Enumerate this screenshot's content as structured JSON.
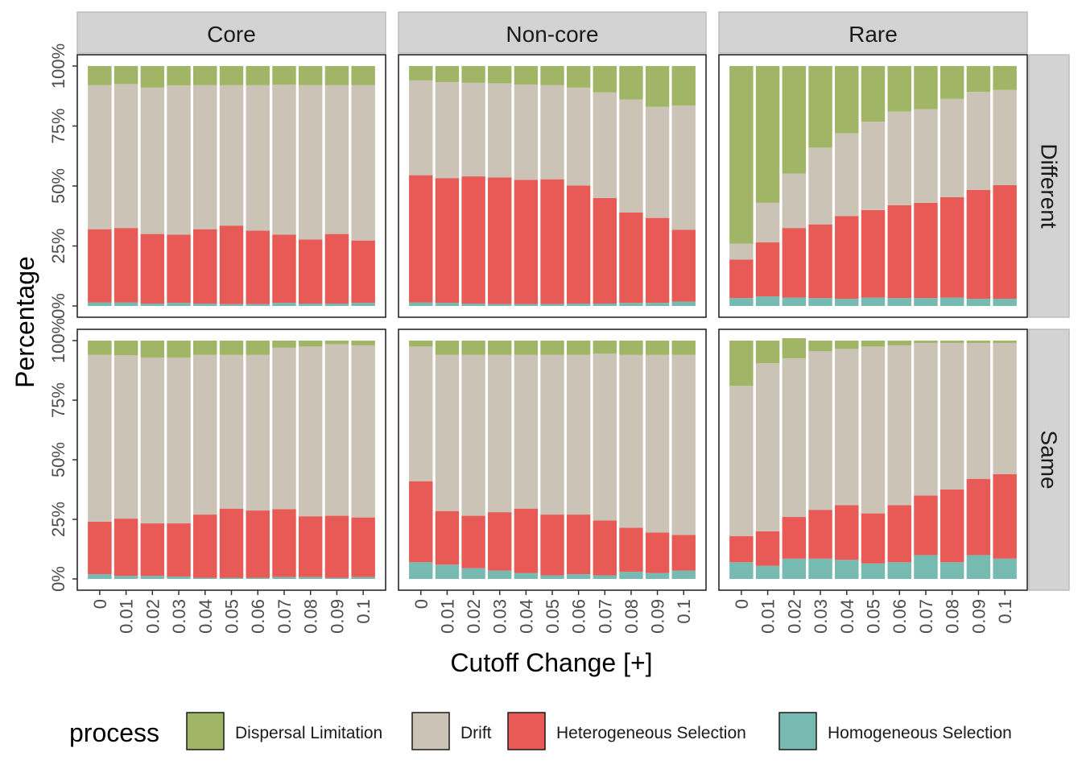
{
  "chart_data": {
    "type": "bar",
    "stacked": true,
    "ylabel": "Percentage",
    "xlabel": "Cutoff Change [+]",
    "ylim": [
      0,
      1
    ],
    "yticks": [
      "0%",
      "25%",
      "50%",
      "75%",
      "100%"
    ],
    "categories": [
      "0",
      "0.01",
      "0.02",
      "0.03",
      "0.04",
      "0.05",
      "0.06",
      "0.07",
      "0.08",
      "0.09",
      "0.1"
    ],
    "column_facets": [
      "Core",
      "Non-core",
      "Rare"
    ],
    "row_facets": [
      "Different",
      "Same"
    ],
    "legend": {
      "title": "process",
      "position": "bottom",
      "entries": [
        "Dispersal Limitation",
        "Drift",
        "Heterogeneous Selection",
        "Homogeneous Selection"
      ]
    },
    "colors": {
      "Dispersal Limitation": "#a0b566",
      "Drift": "#ccc3b7",
      "Heterogeneous Selection": "#e85a55",
      "Homogeneous Selection": "#76bab1"
    },
    "panels": [
      {
        "col": "Core",
        "row": "Different",
        "series": [
          {
            "name": "Homogeneous Selection",
            "values": [
              0.015,
              0.015,
              0.01,
              0.013,
              0.01,
              0.008,
              0.008,
              0.013,
              0.01,
              0.01,
              0.013
            ]
          },
          {
            "name": "Heterogeneous Selection",
            "values": [
              0.305,
              0.31,
              0.29,
              0.284,
              0.31,
              0.327,
              0.306,
              0.284,
              0.267,
              0.29,
              0.26
            ]
          },
          {
            "name": "Drift",
            "values": [
              0.6,
              0.6,
              0.61,
              0.622,
              0.6,
              0.585,
              0.606,
              0.625,
              0.643,
              0.62,
              0.647
            ]
          },
          {
            "name": "Dispersal Limitation",
            "values": [
              0.08,
              0.075,
              0.09,
              0.081,
              0.08,
              0.08,
              0.08,
              0.078,
              0.08,
              0.08,
              0.08
            ]
          }
        ]
      },
      {
        "col": "Non-core",
        "row": "Different",
        "series": [
          {
            "name": "Homogeneous Selection",
            "values": [
              0.015,
              0.013,
              0.01,
              0.008,
              0.008,
              0.008,
              0.01,
              0.01,
              0.013,
              0.013,
              0.018
            ]
          },
          {
            "name": "Heterogeneous Selection",
            "values": [
              0.53,
              0.52,
              0.53,
              0.528,
              0.518,
              0.52,
              0.492,
              0.44,
              0.377,
              0.354,
              0.3
            ]
          },
          {
            "name": "Drift",
            "values": [
              0.395,
              0.4,
              0.39,
              0.392,
              0.397,
              0.392,
              0.408,
              0.44,
              0.47,
              0.463,
              0.517
            ]
          },
          {
            "name": "Dispersal Limitation",
            "values": [
              0.06,
              0.067,
              0.07,
              0.072,
              0.077,
              0.08,
              0.09,
              0.11,
              0.14,
              0.17,
              0.165
            ]
          }
        ]
      },
      {
        "col": "Rare",
        "row": "Different",
        "series": [
          {
            "name": "Homogeneous Selection",
            "values": [
              0.033,
              0.04,
              0.035,
              0.033,
              0.03,
              0.035,
              0.033,
              0.033,
              0.035,
              0.03,
              0.03
            ]
          },
          {
            "name": "Heterogeneous Selection",
            "values": [
              0.16,
              0.225,
              0.29,
              0.307,
              0.345,
              0.365,
              0.387,
              0.397,
              0.418,
              0.454,
              0.474
            ]
          },
          {
            "name": "Drift",
            "values": [
              0.067,
              0.165,
              0.227,
              0.32,
              0.345,
              0.368,
              0.39,
              0.39,
              0.41,
              0.408,
              0.396
            ]
          },
          {
            "name": "Dispersal Limitation",
            "values": [
              0.74,
              0.57,
              0.448,
              0.34,
              0.28,
              0.232,
              0.19,
              0.18,
              0.137,
              0.108,
              0.1
            ]
          }
        ]
      },
      {
        "col": "Core",
        "row": "Same",
        "series": [
          {
            "name": "Homogeneous Selection",
            "values": [
              0.02,
              0.013,
              0.013,
              0.01,
              0.005,
              0.005,
              0.005,
              0.008,
              0.008,
              0.005,
              0.008
            ]
          },
          {
            "name": "Heterogeneous Selection",
            "values": [
              0.22,
              0.24,
              0.22,
              0.223,
              0.265,
              0.29,
              0.282,
              0.285,
              0.255,
              0.26,
              0.25
            ]
          },
          {
            "name": "Drift",
            "values": [
              0.7,
              0.685,
              0.695,
              0.695,
              0.67,
              0.645,
              0.653,
              0.677,
              0.712,
              0.72,
              0.722
            ]
          },
          {
            "name": "Dispersal Limitation",
            "values": [
              0.06,
              0.062,
              0.072,
              0.072,
              0.06,
              0.06,
              0.06,
              0.03,
              0.025,
              0.015,
              0.02
            ]
          }
        ]
      },
      {
        "col": "Non-core",
        "row": "Same",
        "series": [
          {
            "name": "Homogeneous Selection",
            "values": [
              0.07,
              0.06,
              0.045,
              0.035,
              0.025,
              0.015,
              0.02,
              0.015,
              0.03,
              0.025,
              0.035
            ]
          },
          {
            "name": "Heterogeneous Selection",
            "values": [
              0.34,
              0.225,
              0.22,
              0.245,
              0.27,
              0.255,
              0.25,
              0.23,
              0.185,
              0.17,
              0.15
            ]
          },
          {
            "name": "Drift",
            "values": [
              0.565,
              0.655,
              0.675,
              0.66,
              0.645,
              0.67,
              0.67,
              0.7,
              0.725,
              0.745,
              0.755
            ]
          },
          {
            "name": "Dispersal Limitation",
            "values": [
              0.025,
              0.06,
              0.06,
              0.06,
              0.06,
              0.06,
              0.06,
              0.055,
              0.06,
              0.06,
              0.06
            ]
          }
        ]
      },
      {
        "col": "Rare",
        "row": "Same",
        "series": [
          {
            "name": "Homogeneous Selection",
            "values": [
              0.07,
              0.055,
              0.085,
              0.085,
              0.08,
              0.065,
              0.07,
              0.1,
              0.07,
              0.1,
              0.085
            ]
          },
          {
            "name": "Heterogeneous Selection",
            "values": [
              0.11,
              0.145,
              0.175,
              0.205,
              0.23,
              0.21,
              0.24,
              0.25,
              0.305,
              0.32,
              0.355
            ]
          },
          {
            "name": "Drift",
            "values": [
              0.63,
              0.705,
              0.665,
              0.665,
              0.655,
              0.7,
              0.67,
              0.64,
              0.615,
              0.57,
              0.55
            ]
          },
          {
            "name": "Dispersal Limitation",
            "values": [
              0.19,
              0.095,
              0.085,
              0.045,
              0.035,
              0.025,
              0.02,
              0.01,
              0.01,
              0.01,
              0.01
            ]
          }
        ]
      }
    ]
  }
}
